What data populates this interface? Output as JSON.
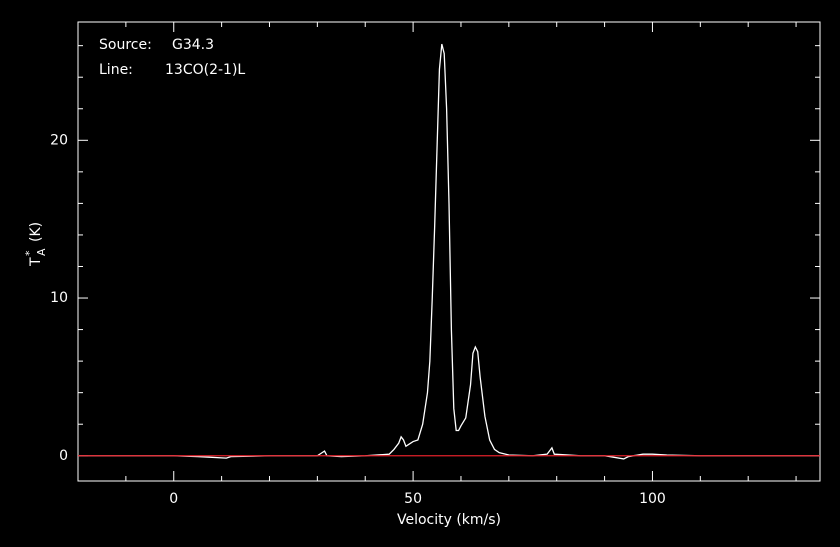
{
  "chart_data": {
    "type": "line",
    "annotations": {
      "source_label": "Source:",
      "source": "G34.3",
      "line_label": "Line:",
      "line": "13CO(2-1)L"
    },
    "x_label": "Velocity (km/s)",
    "y_label": {
      "symbol": "T",
      "superscript": "*",
      "subscript": "A",
      "unit": "(K)"
    },
    "x": [
      -20,
      -10,
      0,
      5,
      11,
      12,
      20,
      30,
      31,
      31.5,
      32,
      35,
      40,
      45,
      46,
      47,
      47.5,
      48,
      48.5,
      49,
      50,
      51,
      52,
      53,
      53.5,
      54,
      54.5,
      55,
      55.5,
      56,
      56.5,
      57,
      57.5,
      58,
      58.5,
      59,
      59.5,
      60,
      61,
      62,
      62.5,
      63,
      63.5,
      64,
      65,
      66,
      67,
      68,
      70,
      75,
      78,
      79,
      79.5,
      85,
      90,
      94,
      95,
      98,
      100,
      103,
      110,
      120,
      135
    ],
    "values": [
      0,
      0,
      0,
      -0.05,
      -0.15,
      -0.05,
      0,
      0,
      0.2,
      0.3,
      0,
      -0.05,
      0,
      0.1,
      0.4,
      0.8,
      1.2,
      1.0,
      0.6,
      0.7,
      0.9,
      1.0,
      2.0,
      4.0,
      6.0,
      10.0,
      14.5,
      19.5,
      24.5,
      26.1,
      25.5,
      22.0,
      16.0,
      8.0,
      3.0,
      1.6,
      1.6,
      1.9,
      2.4,
      4.5,
      6.5,
      6.9,
      6.6,
      5.0,
      2.5,
      1.0,
      0.4,
      0.2,
      0.05,
      0,
      0.1,
      0.5,
      0.1,
      0,
      0,
      -0.2,
      -0.05,
      0.1,
      0.1,
      0.05,
      0,
      0,
      0
    ],
    "color": "#ffffff",
    "baseline": 0,
    "baseline_color": "#e0202a",
    "xlim": [
      -20,
      135
    ],
    "ylim": [
      -1.6,
      27.5
    ],
    "xticks": [
      0,
      50,
      100
    ],
    "yticks": [
      0,
      10,
      20
    ],
    "xminorticks": [
      -10,
      10,
      20,
      30,
      40,
      60,
      70,
      80,
      90,
      110,
      120,
      130
    ],
    "yminorticks": [
      2,
      4,
      6,
      8,
      12,
      14,
      16,
      18,
      22,
      24,
      26
    ]
  }
}
